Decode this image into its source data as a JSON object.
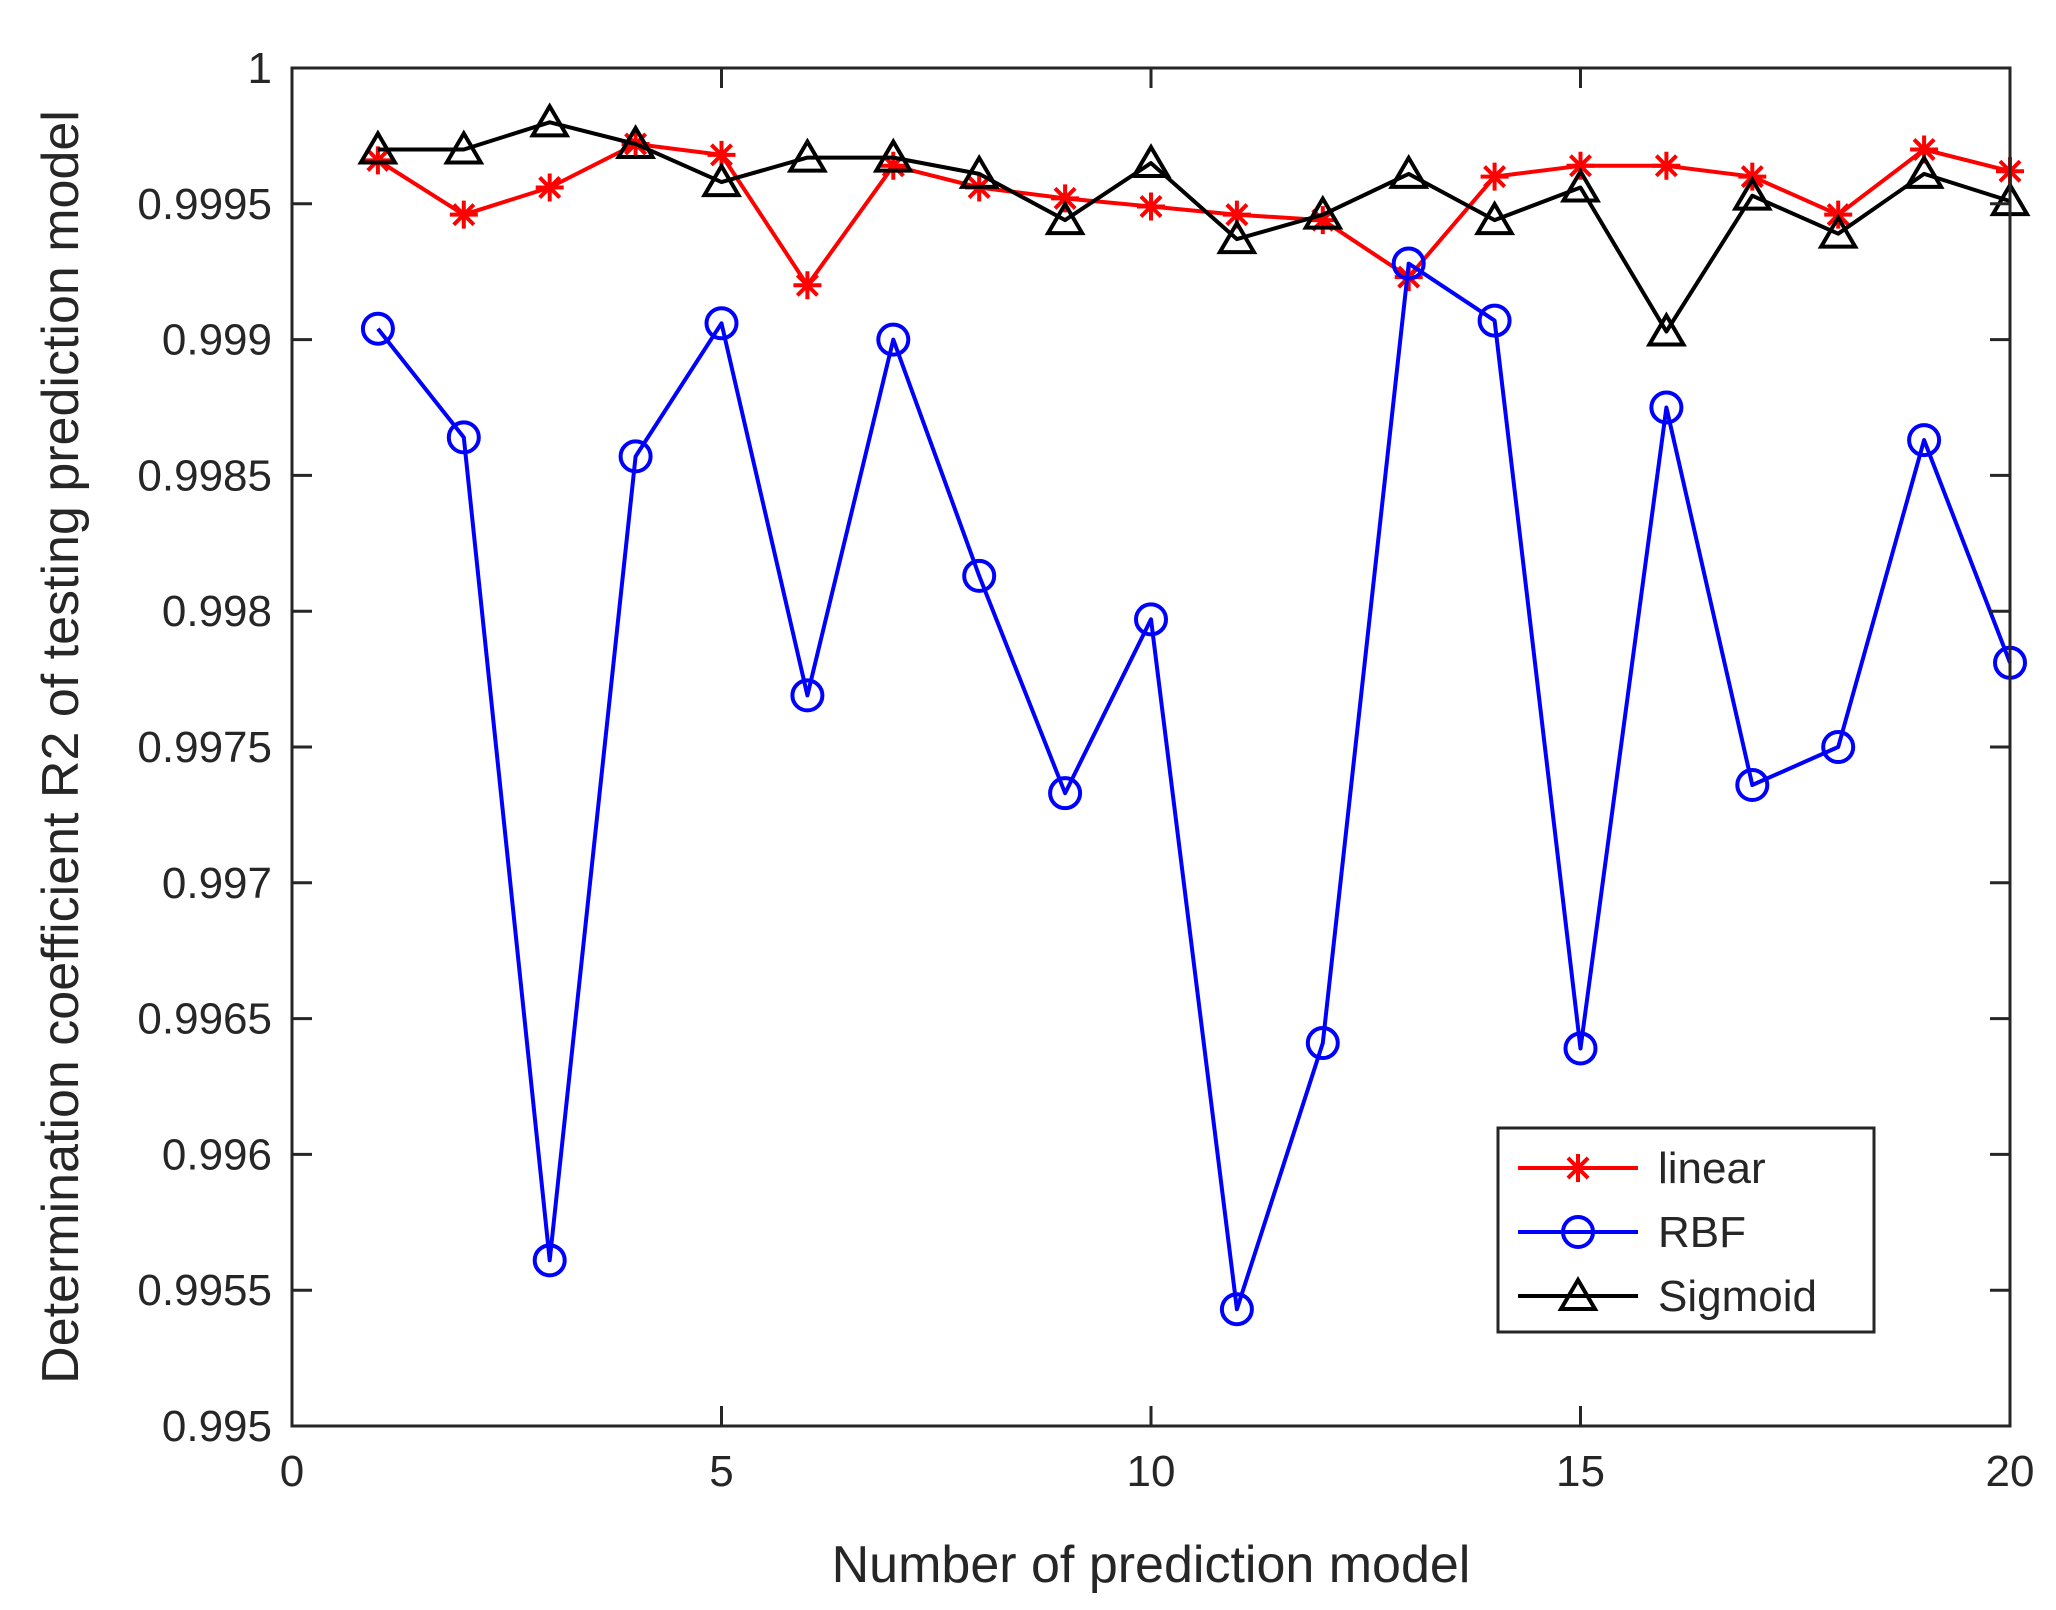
{
  "chart_data": {
    "type": "line",
    "title": "",
    "xlabel": "Number of prediction model",
    "ylabel": "Determination coefficient R2 of testing prediction model",
    "xlim": [
      0,
      20
    ],
    "ylim": [
      0.995,
      1
    ],
    "x_ticks": [
      0,
      5,
      10,
      15,
      20
    ],
    "x_tick_labels": [
      "0",
      "5",
      "10",
      "15",
      "20"
    ],
    "y_ticks": [
      0.995,
      0.9955,
      0.996,
      0.9965,
      0.997,
      0.9975,
      0.998,
      0.9985,
      0.999,
      0.9995,
      1
    ],
    "y_tick_labels": [
      "0.995",
      "0.9955",
      "0.996",
      "0.9965",
      "0.997",
      "0.9975",
      "0.998",
      "0.9985",
      "0.999",
      "0.9995",
      "1"
    ],
    "grid": false,
    "legend_position": "bottom-right",
    "x": [
      1,
      2,
      3,
      4,
      5,
      6,
      7,
      8,
      9,
      10,
      11,
      12,
      13,
      14,
      15,
      16,
      17,
      18,
      19,
      20
    ],
    "series": [
      {
        "name": "linear",
        "color": "#ff0000",
        "marker": "asterisk",
        "values": [
          0.99966,
          0.99946,
          0.99956,
          0.99972,
          0.99968,
          0.9992,
          0.99964,
          0.99956,
          0.99952,
          0.99949,
          0.99946,
          0.99944,
          0.99923,
          0.9996,
          0.99964,
          0.99964,
          0.9996,
          0.99946,
          0.9997,
          0.99962
        ]
      },
      {
        "name": "RBF",
        "color": "#0000ff",
        "marker": "circle",
        "values": [
          0.99904,
          0.99864,
          0.99561,
          0.99857,
          0.99906,
          0.99769,
          0.999,
          0.99813,
          0.99733,
          0.99797,
          0.99543,
          0.99641,
          0.99928,
          0.99907,
          0.99639,
          0.99875,
          0.99736,
          0.9975,
          0.99863,
          0.99781
        ]
      },
      {
        "name": "Sigmoid",
        "color": "#000000",
        "marker": "triangle",
        "values": [
          0.9997,
          0.9997,
          0.9998,
          0.99972,
          0.99958,
          0.99967,
          0.99967,
          0.99961,
          0.99944,
          0.99965,
          0.99937,
          0.99946,
          0.99961,
          0.99944,
          0.99956,
          0.99903,
          0.99953,
          0.99939,
          0.99961,
          0.99951
        ]
      }
    ]
  }
}
